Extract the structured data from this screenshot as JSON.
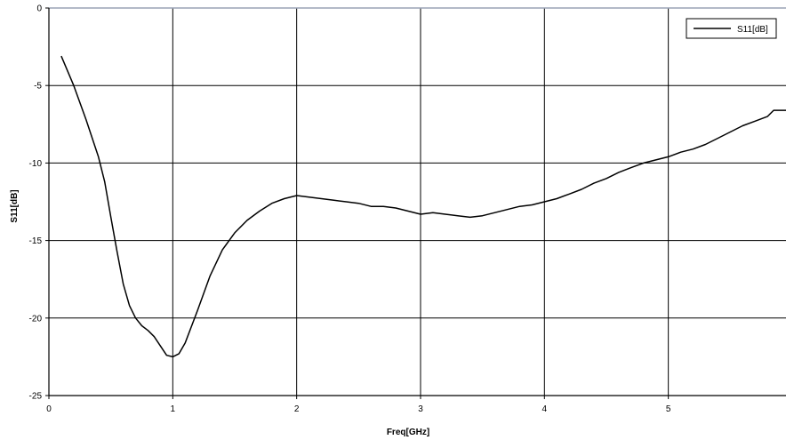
{
  "chart_data": {
    "type": "line",
    "xlabel": "Freq[GHz]",
    "ylabel": "S11[dB]",
    "xlim": [
      0,
      5.95
    ],
    "ylim": [
      -25,
      0
    ],
    "x_ticks": [
      0,
      1,
      2,
      3,
      4,
      5
    ],
    "y_ticks": [
      0,
      -5,
      -10,
      -15,
      -20,
      -25
    ],
    "grid": true,
    "legend_position": "top-right",
    "colors": {
      "line": "#000000",
      "grid": "#000000",
      "axis_top": "#9aa3b5"
    },
    "series": [
      {
        "name": "S11[dB]",
        "x": [
          0.1,
          0.2,
          0.3,
          0.4,
          0.45,
          0.5,
          0.55,
          0.6,
          0.65,
          0.7,
          0.75,
          0.8,
          0.85,
          0.9,
          0.95,
          1.0,
          1.05,
          1.1,
          1.2,
          1.3,
          1.4,
          1.5,
          1.6,
          1.7,
          1.8,
          1.9,
          2.0,
          2.1,
          2.2,
          2.3,
          2.4,
          2.5,
          2.6,
          2.7,
          2.8,
          2.9,
          3.0,
          3.1,
          3.2,
          3.3,
          3.4,
          3.5,
          3.6,
          3.7,
          3.8,
          3.9,
          4.0,
          4.1,
          4.2,
          4.3,
          4.4,
          4.5,
          4.6,
          4.7,
          4.8,
          4.9,
          5.0,
          5.1,
          5.2,
          5.3,
          5.4,
          5.5,
          5.6,
          5.7,
          5.8,
          5.85,
          5.95
        ],
        "values": [
          -3.1,
          -5.0,
          -7.2,
          -9.6,
          -11.2,
          -13.5,
          -15.7,
          -17.8,
          -19.2,
          -20.0,
          -20.5,
          -20.8,
          -21.2,
          -21.8,
          -22.4,
          -22.5,
          -22.3,
          -21.6,
          -19.5,
          -17.3,
          -15.6,
          -14.5,
          -13.7,
          -13.1,
          -12.6,
          -12.3,
          -12.1,
          -12.2,
          -12.3,
          -12.4,
          -12.5,
          -12.6,
          -12.8,
          -12.8,
          -12.9,
          -13.1,
          -13.3,
          -13.2,
          -13.3,
          -13.4,
          -13.5,
          -13.4,
          -13.2,
          -13.0,
          -12.8,
          -12.7,
          -12.5,
          -12.3,
          -12.0,
          -11.7,
          -11.3,
          -11.0,
          -10.6,
          -10.3,
          -10.0,
          -9.8,
          -9.6,
          -9.3,
          -9.1,
          -8.8,
          -8.4,
          -8.0,
          -7.6,
          -7.3,
          -7.0,
          -6.6,
          -6.6
        ]
      }
    ]
  }
}
